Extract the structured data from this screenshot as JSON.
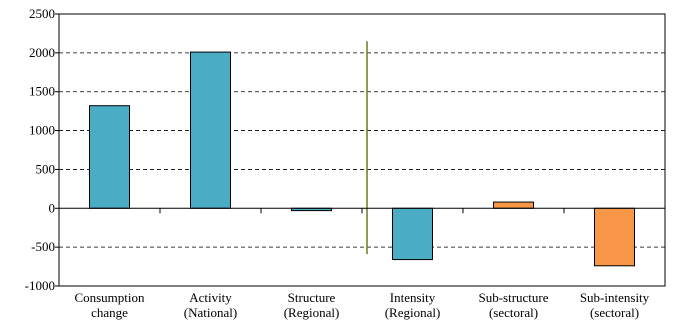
{
  "chart_data": {
    "type": "bar",
    "categories": [
      [
        "Consumption",
        "change"
      ],
      [
        "Activity",
        "(National)"
      ],
      [
        "Structure",
        "(Regional)"
      ],
      [
        "Intensity",
        "(Regional)"
      ],
      [
        "Sub-structure",
        "(sectoral)"
      ],
      [
        "Sub-intensity",
        "(sectoral)"
      ]
    ],
    "values": [
      1320,
      2010,
      -30,
      -660,
      80,
      -740
    ],
    "bar_colors": [
      "#4bacc6",
      "#4bacc6",
      "#4bacc6",
      "#4bacc6",
      "#f79646",
      "#f79646"
    ],
    "divider_color": "#6b7b1f",
    "divider_range": [
      -590,
      2150
    ],
    "divider_after_category": 3,
    "ylim": [
      -1000,
      2500
    ],
    "yticks": [
      -1000,
      -500,
      0,
      500,
      1000,
      1500,
      2000,
      2500
    ],
    "grid": "dashed horizontal",
    "title": "",
    "xlabel": "",
    "ylabel": ""
  }
}
